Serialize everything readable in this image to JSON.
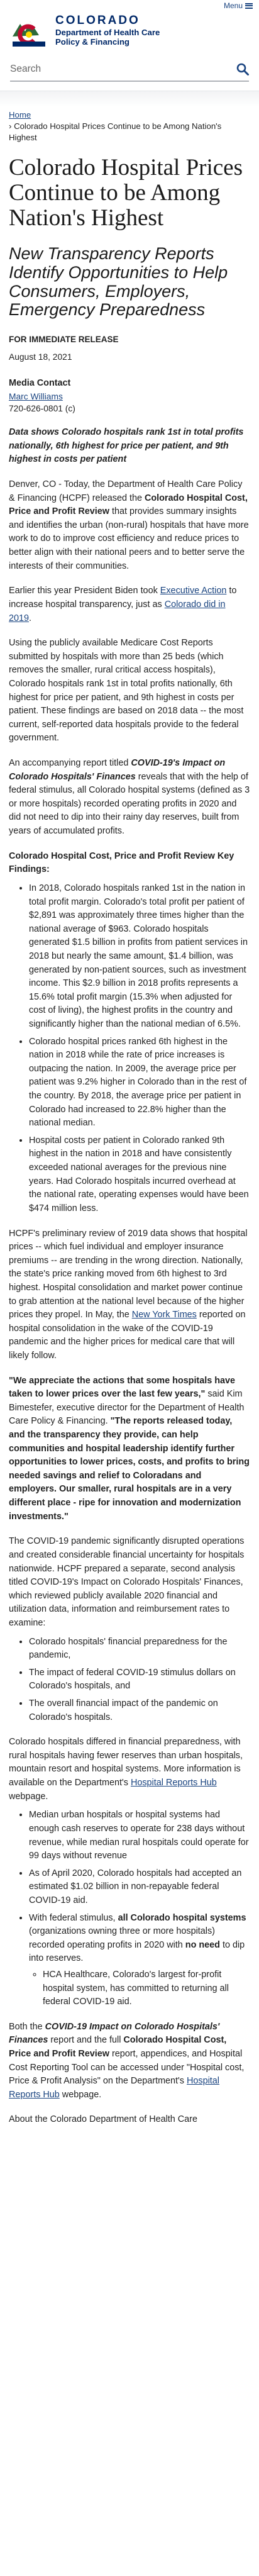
{
  "header": {
    "menu_label": "Menu",
    "state_name": "COLORADO",
    "dept_line1": "Department of Health Care",
    "dept_line2": "Policy & Financing"
  },
  "search": {
    "placeholder": "Search"
  },
  "breadcrumb": {
    "home": "Home",
    "separator": "›",
    "current": "Colorado Hospital Prices Continue to be Among Nation's Highest"
  },
  "article": {
    "title": "Colorado Hospital Prices Continue to be Among Nation's Highest",
    "subtitle": "New Transparency Reports Identify Opportunities to Help Consumers, Employers, Emergency Preparedness",
    "release": "FOR IMMEDIATE RELEASE",
    "date": "August 18, 2021",
    "contact_heading": "Media Contact",
    "contact_name": "Marc Williams",
    "contact_phone": "720-626-0801 (c)",
    "lead": "Data shows Colorado hospitals rank 1st in total profits nationally, 6th highest for price per patient, and 9th highest in costs per patient",
    "p1_a": "Denver, CO - Today, the Department of Health Care Policy & Financing (HCPF) released the ",
    "p1_b": "Colorado Hospital Cost, Price and Profit Review",
    "p1_c": " that provides summary insights and identifies the urban (non-rural) hospitals that have more work to do to improve cost efficiency and reduce prices to better align with their national peers and to better serve the interests of their communities.",
    "p2_a": "Earlier this year President Biden took ",
    "p2_link1": "Executive Action",
    "p2_b": " to increase hospital transparency, just as ",
    "p2_link2": "Colorado did in 2019",
    "p2_c": ".",
    "p3": "Using the publicly available Medicare Cost Reports submitted by hospitals with more than 25 beds (which removes the smaller, rural critical access hospitals), Colorado hospitals rank 1st in total profits nationally, 6th highest for price per patient, and 9th highest in costs per patient. These findings are based on 2018 data -- the most current, self-reported data hospitals provide to the federal government.",
    "p4_a": "An accompanying report titled ",
    "p4_b": "COVID-19's Impact on Colorado Hospitals' Finances",
    "p4_c": " reveals that with the help of federal stimulus, all Colorado hospital systems (defined as 3 or more hospitals) recorded operating profits in 2020 and did not need to dip into their rainy day reserves, built from years of accumulated profits.",
    "findings_heading": "Colorado Hospital Cost, Price and Profit Review Key Findings:",
    "findings": [
      "In 2018, Colorado hospitals ranked 1st in the nation in total profit margin. Colorado's total profit per patient of $2,891 was approximately three times higher than the national average of $963. Colorado hospitals generated $1.5 billion in profits from patient services in 2018 but nearly the same amount, $1.4 billion, was generated by non-patient sources, such as investment income. This $2.9 billion in 2018 profits represents a 15.6% total profit margin (15.3% when adjusted for cost of living), the highest profits in the country and significantly higher than the national median of 6.5%.",
      "Colorado hospital prices ranked 6th highest in the nation in 2018 while the rate of price increases is outpacing the nation. In 2009, the average price per patient was 9.2% higher in Colorado than in the rest of the country. By 2018, the average price per patient in Colorado had increased to 22.8% higher than the national median.",
      "Hospital costs per patient in Colorado ranked 9th highest in the nation in 2018 and have consistently exceeded national averages for the previous nine years. Had Colorado hospitals incurred overhead at the national rate, operating expenses would have been $474 million less."
    ],
    "p5_a": "HCPF's preliminary review of 2019 data shows that hospital prices -- which fuel individual and employer insurance premiums -- are trending in the wrong direction. Nationally, the state's price ranking moved from 6th highest to 3rd highest. Hospital consolidation and market power continue to grab attention at the national level because of the higher prices they propel. In May, the ",
    "p5_link": "New York Times",
    "p5_b": " reported on hospital consolidation in the wake of the COVID-19 pandemic and the higher prices for medical care that will likely follow.",
    "quote_a": "\"We appreciate the actions that some hospitals have taken to lower prices over the last few years,\"",
    "quote_b": " said Kim Bimestefer, executive director for the Department of Health Care Policy & Financing. ",
    "quote_c": "\"The reports released today, and the transparency they provide, can help communities and hospital leadership identify further opportunities to lower prices, costs, and profits to bring needed savings and relief to Coloradans and employers. Our smaller, rural hospitals are in a very different place - ripe for innovation and modernization investments.\"",
    "p6": "The COVID-19 pandemic significantly disrupted operations and created considerable financial uncertainty for hospitals nationwide. HCPF prepared a separate, second analysis titled COVID-19's Impact on Colorado Hospitals' Finances, which reviewed publicly available 2020 financial and utilization data, information and reimbursement rates to examine:",
    "examine": [
      "Colorado hospitals' financial preparedness for the pandemic,",
      "The impact of federal COVID-19 stimulus dollars on Colorado's hospitals, and",
      "The overall financial impact of the pandemic on Colorado's hospitals."
    ],
    "p7_a": "Colorado hospitals differed in financial preparedness, with rural hospitals having fewer reserves than urban hospitals, mountain resort and hospital systems. More information is available on the Department's ",
    "p7_link": "Hospital Reports Hub",
    "p7_b": " webpage.",
    "covid_bullets": {
      "b1": "Median urban hospitals or hospital systems had enough cash reserves to operate for 238 days without revenue, while median rural hospitals could operate for 99 days without revenue",
      "b2": "As of April 2020, Colorado hospitals had accepted an estimated $1.02 billion in non-repayable federal COVID-19 aid.",
      "b3_a": "With federal stimulus, ",
      "b3_b": "all Colorado hospital systems",
      "b3_c": " (organizations owning three or more hospitals) recorded operating profits in 2020 with ",
      "b3_d": "no need",
      "b3_e": " to dip into reserves.",
      "b3_sub": "HCA Healthcare, Colorado's largest for-profit hospital system, has committed to returning all federal COVID-19 aid."
    },
    "p8_a": "Both the ",
    "p8_b": "COVID-19 Impact on Colorado Hospitals' Finances",
    "p8_c": " report and the full ",
    "p8_d": "Colorado Hospital Cost, Price and Profit Review",
    "p8_e": " report, appendices, and Hospital Cost Reporting Tool can be accessed under \"Hospital cost, Price & Profit Analysis\" on the Department's ",
    "p8_link": "Hospital Reports Hub",
    "p8_f": " webpage.",
    "p9": "About the Colorado Department of Health Care"
  },
  "colors": {
    "brand_blue": "#002868",
    "link_blue": "#1a4480",
    "flag_red": "#bf0a30",
    "flag_gold": "#ffd700",
    "logo_green": "#2e6b3a"
  }
}
